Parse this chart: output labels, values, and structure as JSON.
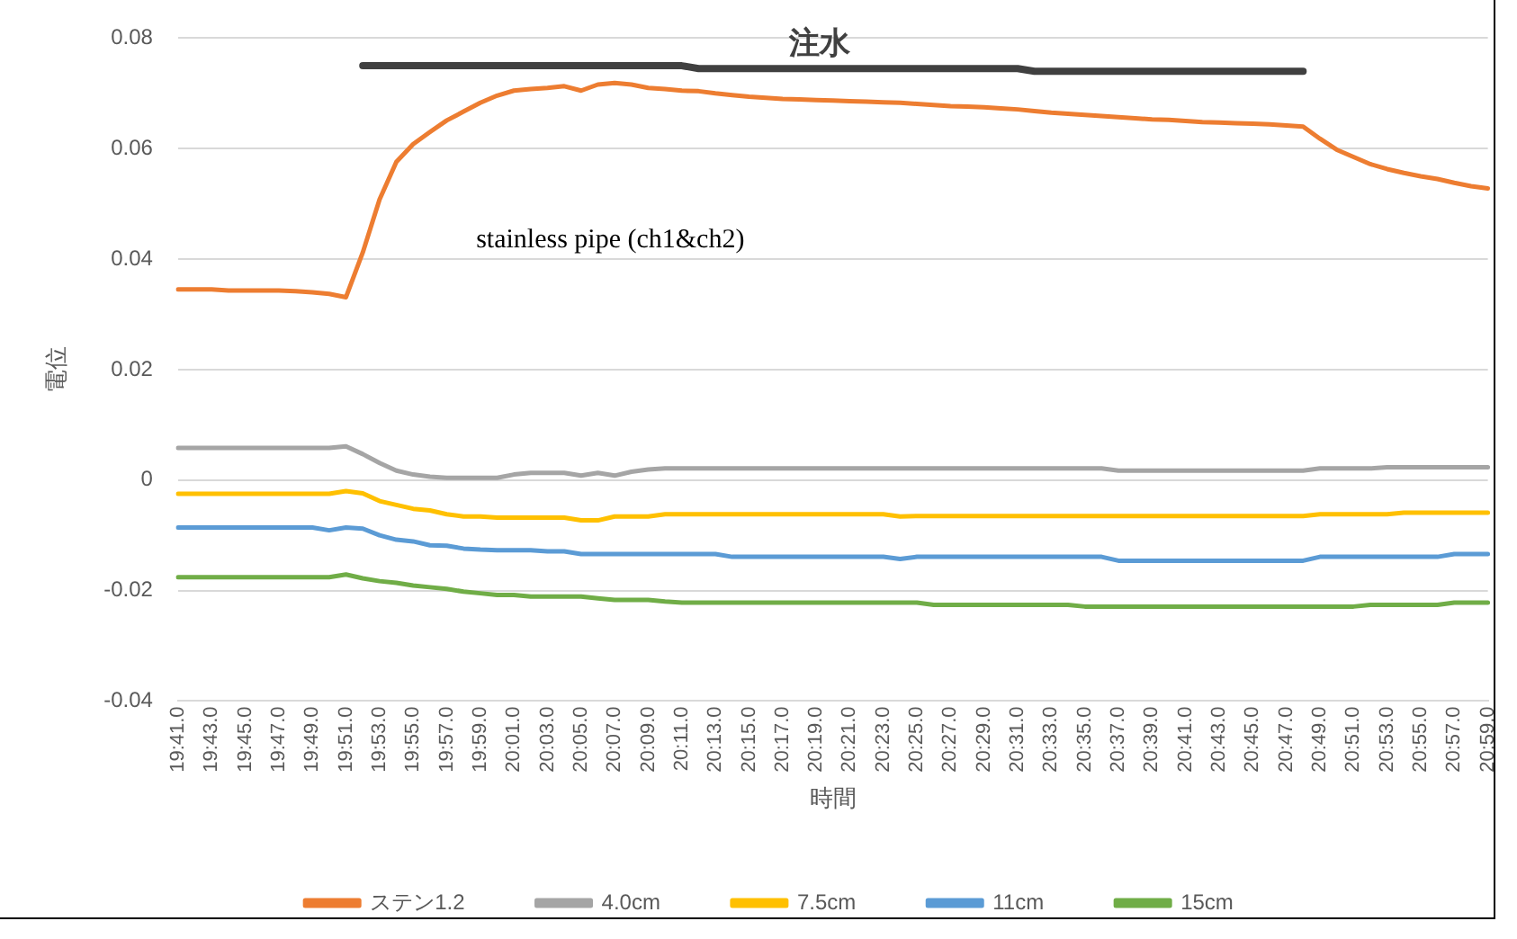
{
  "chart_data": {
    "type": "line",
    "xlabel": "時間",
    "ylabel": "電位",
    "annotations": [
      "注水",
      "stainless pipe (ch1&ch2)"
    ],
    "categories": [
      "19:41.0",
      null,
      "19:43.0",
      null,
      "19:45.0",
      null,
      "19:47.0",
      null,
      "19:49.0",
      null,
      "19:51.0",
      null,
      "19:53.0",
      null,
      "19:55.0",
      null,
      "19:57.0",
      null,
      "19:59.0",
      null,
      "20:01.0",
      null,
      "20:03.0",
      null,
      "20:05.0",
      null,
      "20:07.0",
      null,
      "20:09.0",
      null,
      "20:11.0",
      null,
      "20:13.0",
      null,
      "20:15.0",
      null,
      "20:17.0",
      null,
      "20:19.0",
      null,
      "20:21.0",
      null,
      "20:23.0",
      null,
      "20:25.0",
      null,
      "20:27.0",
      null,
      "20:29.0",
      null,
      "20:31.0",
      null,
      "20:33.0",
      null,
      "20:35.0",
      null,
      "20:37.0",
      null,
      "20:39.0",
      null,
      "20:41.0",
      null,
      "20:43.0",
      null,
      "20:45.0",
      null,
      "20:47.0",
      null,
      "20:49.0",
      null,
      "20:51.0",
      null,
      "20:53.0",
      null,
      "20:55.0",
      null,
      "20:57.0",
      null,
      "20:59.0"
    ],
    "series": [
      {
        "name": "ステン1.2",
        "color": "#ed7d31",
        "values": [
          0.0345,
          0.0345,
          0.0345,
          0.0343,
          0.0343,
          0.0343,
          0.0343,
          0.0342,
          0.034,
          0.0337,
          0.0331,
          0.0412,
          0.0508,
          0.0576,
          0.0608,
          0.063,
          0.0651,
          0.0667,
          0.0683,
          0.0696,
          0.0705,
          0.0708,
          0.071,
          0.0713,
          0.0705,
          0.0716,
          0.0719,
          0.0716,
          0.071,
          0.0708,
          0.0705,
          0.0704,
          0.07,
          0.0697,
          0.0694,
          0.0692,
          0.069,
          0.0689,
          0.0688,
          0.0687,
          0.0686,
          0.0685,
          0.0684,
          0.0683,
          0.0681,
          0.0679,
          0.0677,
          0.0676,
          0.0675,
          0.0673,
          0.0671,
          0.0668,
          0.0665,
          0.0663,
          0.0661,
          0.0659,
          0.0657,
          0.0655,
          0.0653,
          0.0652,
          0.065,
          0.0648,
          0.0647,
          0.0646,
          0.0645,
          0.0644,
          0.0642,
          0.064,
          0.0618,
          0.0598,
          0.0585,
          0.0572,
          0.0563,
          0.0556,
          0.055,
          0.0545,
          0.0538,
          0.0532,
          0.0528
        ]
      },
      {
        "name": "4.0cm",
        "color": "#a5a5a5",
        "values": [
          0.0058,
          0.0058,
          0.0058,
          0.0058,
          0.0058,
          0.0058,
          0.0058,
          0.0058,
          0.0058,
          0.0058,
          0.0061,
          0.0047,
          0.0031,
          0.0017,
          0.001,
          0.0006,
          0.0004,
          0.0004,
          0.0004,
          0.0004,
          0.001,
          0.0013,
          0.0013,
          0.0013,
          0.0008,
          0.0013,
          0.0008,
          0.0015,
          0.0019,
          0.0021,
          0.0021,
          0.0021,
          0.0021,
          0.0021,
          0.0021,
          0.0021,
          0.0021,
          0.0021,
          0.0021,
          0.0021,
          0.0021,
          0.0021,
          0.0021,
          0.0021,
          0.0021,
          0.0021,
          0.0021,
          0.0021,
          0.0021,
          0.0021,
          0.0021,
          0.0021,
          0.0021,
          0.0021,
          0.0021,
          0.0021,
          0.0017,
          0.0017,
          0.0017,
          0.0017,
          0.0017,
          0.0017,
          0.0017,
          0.0017,
          0.0017,
          0.0017,
          0.0017,
          0.0017,
          0.0021,
          0.0021,
          0.0021,
          0.0021,
          0.0023,
          0.0023,
          0.0023,
          0.0023,
          0.0023,
          0.0023,
          0.0023
        ]
      },
      {
        "name": "7.5cm",
        "color": "#ffc000",
        "values": [
          -0.0025,
          -0.0025,
          -0.0025,
          -0.0025,
          -0.0025,
          -0.0025,
          -0.0025,
          -0.0025,
          -0.0025,
          -0.0025,
          -0.002,
          -0.0024,
          -0.0038,
          -0.0045,
          -0.0052,
          -0.0055,
          -0.0062,
          -0.0066,
          -0.0066,
          -0.0068,
          -0.0068,
          -0.0068,
          -0.0068,
          -0.0068,
          -0.0073,
          -0.0073,
          -0.0066,
          -0.0066,
          -0.0066,
          -0.0062,
          -0.0062,
          -0.0062,
          -0.0062,
          -0.0062,
          -0.0062,
          -0.0062,
          -0.0062,
          -0.0062,
          -0.0062,
          -0.0062,
          -0.0062,
          -0.0062,
          -0.0062,
          -0.0066,
          -0.0065,
          -0.0065,
          -0.0065,
          -0.0065,
          -0.0065,
          -0.0065,
          -0.0065,
          -0.0065,
          -0.0065,
          -0.0065,
          -0.0065,
          -0.0065,
          -0.0065,
          -0.0065,
          -0.0065,
          -0.0065,
          -0.0065,
          -0.0065,
          -0.0065,
          -0.0065,
          -0.0065,
          -0.0065,
          -0.0065,
          -0.0065,
          -0.0062,
          -0.0062,
          -0.0062,
          -0.0062,
          -0.0062,
          -0.0059,
          -0.0059,
          -0.0059,
          -0.0059,
          -0.0059,
          -0.0059
        ]
      },
      {
        "name": "11cm",
        "color": "#5b9bd5",
        "values": [
          -0.0086,
          -0.0086,
          -0.0086,
          -0.0086,
          -0.0086,
          -0.0086,
          -0.0086,
          -0.0086,
          -0.0086,
          -0.0091,
          -0.0086,
          -0.0088,
          -0.01,
          -0.0108,
          -0.0111,
          -0.0118,
          -0.0119,
          -0.0124,
          -0.0126,
          -0.0127,
          -0.0127,
          -0.0127,
          -0.0129,
          -0.0129,
          -0.0134,
          -0.0134,
          -0.0134,
          -0.0134,
          -0.0134,
          -0.0134,
          -0.0134,
          -0.0134,
          -0.0134,
          -0.0139,
          -0.0139,
          -0.0139,
          -0.0139,
          -0.0139,
          -0.0139,
          -0.0139,
          -0.0139,
          -0.0139,
          -0.0139,
          -0.0143,
          -0.0139,
          -0.0139,
          -0.0139,
          -0.0139,
          -0.0139,
          -0.0139,
          -0.0139,
          -0.0139,
          -0.0139,
          -0.0139,
          -0.0139,
          -0.0139,
          -0.0146,
          -0.0146,
          -0.0146,
          -0.0146,
          -0.0146,
          -0.0146,
          -0.0146,
          -0.0146,
          -0.0146,
          -0.0146,
          -0.0146,
          -0.0146,
          -0.0139,
          -0.0139,
          -0.0139,
          -0.0139,
          -0.0139,
          -0.0139,
          -0.0139,
          -0.0139,
          -0.0134,
          -0.0134,
          -0.0134
        ]
      },
      {
        "name": "15cm",
        "color": "#70ad47",
        "values": [
          -0.0176,
          -0.0176,
          -0.0176,
          -0.0176,
          -0.0176,
          -0.0176,
          -0.0176,
          -0.0176,
          -0.0176,
          -0.0176,
          -0.0171,
          -0.0178,
          -0.0183,
          -0.0186,
          -0.0191,
          -0.0194,
          -0.0197,
          -0.0202,
          -0.0205,
          -0.0208,
          -0.0208,
          -0.0211,
          -0.0211,
          -0.0211,
          -0.0211,
          -0.0214,
          -0.0217,
          -0.0217,
          -0.0217,
          -0.022,
          -0.0222,
          -0.0222,
          -0.0222,
          -0.0222,
          -0.0222,
          -0.0222,
          -0.0222,
          -0.0222,
          -0.0222,
          -0.0222,
          -0.0222,
          -0.0222,
          -0.0222,
          -0.0222,
          -0.0222,
          -0.0226,
          -0.0226,
          -0.0226,
          -0.0226,
          -0.0226,
          -0.0226,
          -0.0226,
          -0.0226,
          -0.0226,
          -0.0229,
          -0.0229,
          -0.0229,
          -0.0229,
          -0.0229,
          -0.0229,
          -0.0229,
          -0.0229,
          -0.0229,
          -0.0229,
          -0.0229,
          -0.0229,
          -0.0229,
          -0.0229,
          -0.0229,
          -0.0229,
          -0.0229,
          -0.0226,
          -0.0226,
          -0.0226,
          -0.0226,
          -0.0226,
          -0.0222,
          -0.0222,
          -0.0222
        ]
      },
      {
        "color": "#404040",
        "values": [
          null,
          null,
          null,
          null,
          null,
          null,
          null,
          null,
          null,
          null,
          null,
          0.075,
          0.075,
          0.075,
          0.075,
          0.075,
          0.075,
          0.075,
          0.075,
          0.075,
          0.075,
          0.075,
          0.075,
          0.075,
          0.075,
          0.075,
          0.075,
          0.075,
          0.075,
          0.075,
          0.075,
          0.0745,
          0.0745,
          0.0745,
          0.0745,
          0.0745,
          0.0745,
          0.0745,
          0.0745,
          0.0745,
          0.0745,
          0.0745,
          0.0745,
          0.0745,
          0.0745,
          0.0745,
          0.0745,
          0.0745,
          0.0745,
          0.0745,
          0.0745,
          0.074,
          0.074,
          0.074,
          0.074,
          0.074,
          0.074,
          0.074,
          0.074,
          0.074,
          0.074,
          0.074,
          0.074,
          0.074,
          0.074,
          0.074,
          0.074,
          0.074,
          null,
          null,
          null,
          null,
          null,
          null,
          null,
          null,
          null,
          null,
          null
        ]
      }
    ],
    "ylim": [
      -0.04,
      0.08
    ],
    "yticks": [
      -0.04,
      -0.02,
      0,
      0.02,
      0.04,
      0.06,
      0.08
    ],
    "grid": "y",
    "legend": "bottom",
    "marker": "none",
    "line_style": "solid"
  }
}
